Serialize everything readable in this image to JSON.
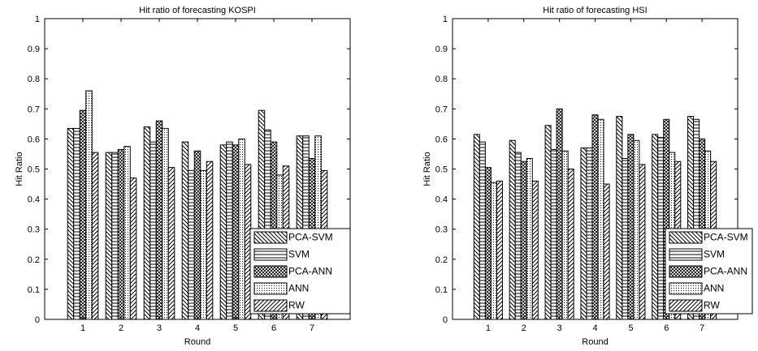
{
  "chart_data": [
    {
      "type": "bar",
      "title": "Hit ratio of forecasting KOSPI",
      "xlabel": "Round",
      "ylabel": "Hit Ratio",
      "categories": [
        "1",
        "2",
        "3",
        "4",
        "5",
        "6",
        "7"
      ],
      "ylim": [
        0,
        1
      ],
      "yticks": [
        "0",
        "0.1",
        "0.2",
        "0.3",
        "0.4",
        "0.5",
        "0.6",
        "0.7",
        "0.8",
        "0.9",
        "1"
      ],
      "grid": false,
      "legend_position": "bottom-right",
      "series": [
        {
          "name": "PCA-SVM",
          "pattern": "pat-diag-back",
          "values": [
            0.635,
            0.555,
            0.64,
            0.59,
            0.58,
            0.695,
            0.61
          ]
        },
        {
          "name": "SVM",
          "pattern": "pat-horizontal",
          "values": [
            0.635,
            0.555,
            0.59,
            0.495,
            0.59,
            0.63,
            0.61
          ]
        },
        {
          "name": "PCA-ANN",
          "pattern": "pat-crosshatch",
          "values": [
            0.695,
            0.565,
            0.66,
            0.56,
            0.58,
            0.59,
            0.535
          ]
        },
        {
          "name": "ANN",
          "pattern": "pat-dotted",
          "values": [
            0.76,
            0.575,
            0.635,
            0.495,
            0.6,
            0.48,
            0.61
          ]
        },
        {
          "name": "RW",
          "pattern": "pat-diag-fwd",
          "values": [
            0.555,
            0.47,
            0.505,
            0.525,
            0.515,
            0.51,
            0.495
          ]
        }
      ]
    },
    {
      "type": "bar",
      "title": "Hit ratio of forecasting HSI",
      "xlabel": "Round",
      "ylabel": "Hit Ratio",
      "categories": [
        "1",
        "2",
        "3",
        "4",
        "5",
        "6",
        "7"
      ],
      "ylim": [
        0,
        1
      ],
      "yticks": [
        "0",
        "0.1",
        "0.2",
        "0.3",
        "0.4",
        "0.5",
        "0.6",
        "0.7",
        "0.8",
        "0.9",
        "1"
      ],
      "grid": false,
      "legend_position": "bottom-right",
      "series": [
        {
          "name": "PCA-SVM",
          "pattern": "pat-diag-back",
          "values": [
            0.615,
            0.595,
            0.645,
            0.57,
            0.675,
            0.615,
            0.675
          ]
        },
        {
          "name": "SVM",
          "pattern": "pat-horizontal",
          "values": [
            0.59,
            0.555,
            0.565,
            0.57,
            0.535,
            0.605,
            0.665
          ]
        },
        {
          "name": "PCA-ANN",
          "pattern": "pat-crosshatch",
          "values": [
            0.505,
            0.525,
            0.7,
            0.68,
            0.615,
            0.665,
            0.6
          ]
        },
        {
          "name": "ANN",
          "pattern": "pat-dotted",
          "values": [
            0.455,
            0.535,
            0.56,
            0.665,
            0.595,
            0.555,
            0.56
          ]
        },
        {
          "name": "RW",
          "pattern": "pat-diag-fwd",
          "values": [
            0.46,
            0.46,
            0.5,
            0.45,
            0.515,
            0.525,
            0.525
          ]
        }
      ]
    }
  ]
}
